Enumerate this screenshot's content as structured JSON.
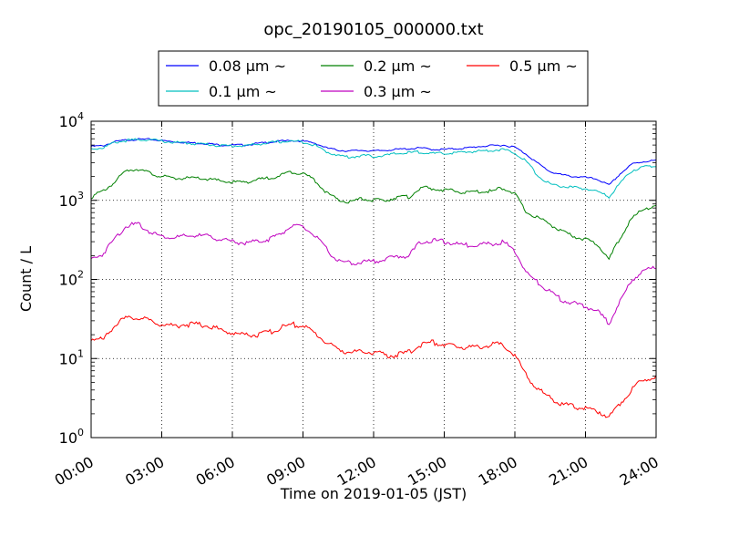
{
  "chart_data": {
    "type": "line",
    "title": "opc_20190105_000000.txt",
    "xlabel": "Time on 2019-01-05 (JST)",
    "ylabel": "Count / L",
    "x_unit": "hours",
    "xlim": [
      0,
      24
    ],
    "ylim": [
      1,
      10000
    ],
    "y_scale": "log",
    "grid": true,
    "legend_position": "top-center",
    "x_ticks": [
      {
        "value": 0,
        "label": "00:00"
      },
      {
        "value": 3,
        "label": "03:00"
      },
      {
        "value": 6,
        "label": "06:00"
      },
      {
        "value": 9,
        "label": "09:00"
      },
      {
        "value": 12,
        "label": "12:00"
      },
      {
        "value": 15,
        "label": "15:00"
      },
      {
        "value": 18,
        "label": "18:00"
      },
      {
        "value": 21,
        "label": "21:00"
      },
      {
        "value": 24,
        "label": "24:00"
      }
    ],
    "y_ticks": [
      {
        "value": 1,
        "base": "10",
        "exp": "0"
      },
      {
        "value": 10,
        "base": "10",
        "exp": "1"
      },
      {
        "value": 100,
        "base": "10",
        "exp": "2"
      },
      {
        "value": 1000,
        "base": "10",
        "exp": "3"
      },
      {
        "value": 10000,
        "base": "10",
        "exp": "4"
      }
    ],
    "x": [
      0,
      0.5,
      1,
      1.5,
      2,
      2.5,
      3,
      3.5,
      4,
      4.5,
      5,
      5.5,
      6,
      6.5,
      7,
      7.5,
      8,
      8.5,
      9,
      9.5,
      10,
      10.5,
      11,
      11.5,
      12,
      12.5,
      13,
      13.5,
      14,
      14.5,
      15,
      15.5,
      16,
      16.5,
      17,
      17.5,
      18,
      18.5,
      19,
      19.5,
      20,
      20.5,
      21,
      21.5,
      22,
      22.5,
      23,
      23.5,
      24
    ],
    "series": [
      {
        "name": "0.08 μm ~",
        "color": "#0000ff",
        "values": [
          4800,
          4900,
          5500,
          5800,
          5900,
          5900,
          5700,
          5500,
          5400,
          5300,
          5200,
          5000,
          5000,
          5000,
          5200,
          5400,
          5600,
          5700,
          5600,
          5300,
          4600,
          4300,
          4200,
          4300,
          4200,
          4300,
          4400,
          4500,
          4600,
          4400,
          4400,
          4500,
          4600,
          4800,
          4900,
          5000,
          4700,
          3800,
          2900,
          2300,
          2100,
          2000,
          1950,
          1850,
          1550,
          2200,
          2900,
          3100,
          3200
        ]
      },
      {
        "name": "0.1 μm ~",
        "color": "#00bfbf",
        "values": [
          4500,
          4600,
          5400,
          5700,
          5850,
          5850,
          5600,
          5400,
          5300,
          5200,
          5100,
          4900,
          4900,
          4900,
          5100,
          5300,
          5500,
          5600,
          5500,
          5000,
          4100,
          3700,
          3500,
          3700,
          3600,
          3700,
          3900,
          4000,
          4100,
          3900,
          3900,
          4000,
          4100,
          4200,
          4300,
          4400,
          4000,
          3100,
          2000,
          1600,
          1500,
          1450,
          1400,
          1300,
          1100,
          1700,
          2400,
          2650,
          2750
        ]
      },
      {
        "name": "0.2 μm ~",
        "color": "#008000",
        "values": [
          1100,
          1300,
          1700,
          2400,
          2500,
          2200,
          2000,
          1900,
          1900,
          1900,
          1850,
          1750,
          1700,
          1700,
          1800,
          1900,
          2050,
          2300,
          2200,
          1800,
          1250,
          1000,
          950,
          1050,
          1000,
          1000,
          1100,
          1100,
          1450,
          1400,
          1350,
          1300,
          1250,
          1300,
          1300,
          1450,
          1200,
          700,
          600,
          500,
          400,
          350,
          320,
          280,
          180,
          350,
          600,
          800,
          830
        ]
      },
      {
        "name": "0.3 μm ~",
        "color": "#bf00bf",
        "values": [
          180,
          210,
          330,
          480,
          500,
          400,
          350,
          340,
          350,
          360,
          350,
          320,
          300,
          290,
          300,
          320,
          370,
          470,
          460,
          360,
          240,
          170,
          160,
          165,
          170,
          180,
          195,
          200,
          300,
          310,
          300,
          280,
          270,
          280,
          280,
          300,
          230,
          120,
          90,
          70,
          55,
          50,
          45,
          40,
          28,
          55,
          100,
          130,
          140
        ]
      },
      {
        "name": "0.5 μm ~",
        "color": "#ff0000",
        "values": [
          18,
          17,
          27,
          32,
          33,
          30,
          27,
          26,
          27,
          27,
          26,
          23,
          21,
          20,
          20,
          21,
          24,
          27,
          26,
          21,
          16,
          13,
          12,
          12,
          12,
          11,
          11,
          12,
          15,
          16,
          15,
          14,
          14,
          14,
          15,
          15,
          11,
          6,
          4,
          3.2,
          2.6,
          2.5,
          2.3,
          2.2,
          1.8,
          2.8,
          4.2,
          5.5,
          6
        ]
      }
    ]
  }
}
